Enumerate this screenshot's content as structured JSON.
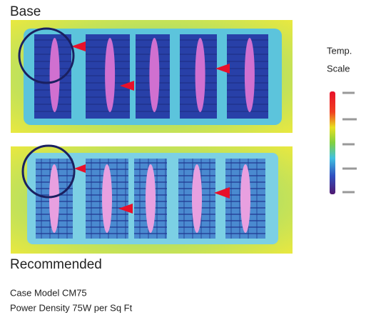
{
  "labels": {
    "base": "Base",
    "recommended": "Recommended"
  },
  "scale": {
    "line1": "Temp.",
    "line2": "Scale"
  },
  "caption": {
    "model": "Case Model CM75",
    "density": "Power Density 75W per Sq Ft"
  }
}
